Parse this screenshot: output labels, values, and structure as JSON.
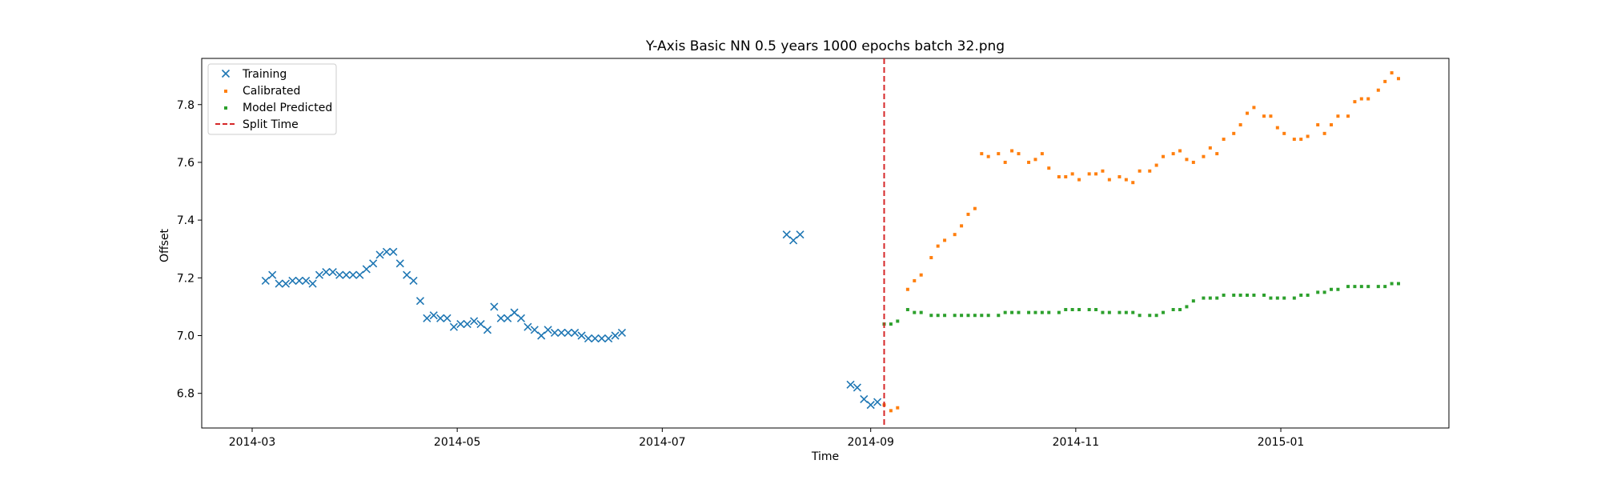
{
  "chart_data": {
    "type": "scatter",
    "title": "Y-Axis Basic NN 0.5 years 1000 epochs batch 32.png",
    "xlabel": "Time",
    "ylabel": "Offset",
    "xlim": [
      "2014-02-14",
      "2015-02-20"
    ],
    "ylim": [
      6.68,
      7.96
    ],
    "x_ticks": [
      "2014-03",
      "2014-05",
      "2014-07",
      "2014-09",
      "2014-11",
      "2015-01"
    ],
    "y_ticks": [
      6.8,
      7.0,
      7.2,
      7.4,
      7.6,
      7.8
    ],
    "y_tick_labels": [
      "6.8",
      "7.0",
      "7.2",
      "7.4",
      "7.6",
      "7.8"
    ],
    "grid": false,
    "legend_position": "top-left",
    "split_time": "2014-09-05",
    "series": [
      {
        "name": "Training",
        "marker": "x",
        "color": "#1f77b4",
        "points": [
          [
            "2014-03-05",
            7.19
          ],
          [
            "2014-03-07",
            7.21
          ],
          [
            "2014-03-09",
            7.18
          ],
          [
            "2014-03-11",
            7.18
          ],
          [
            "2014-03-13",
            7.19
          ],
          [
            "2014-03-15",
            7.19
          ],
          [
            "2014-03-17",
            7.19
          ],
          [
            "2014-03-19",
            7.18
          ],
          [
            "2014-03-21",
            7.21
          ],
          [
            "2014-03-23",
            7.22
          ],
          [
            "2014-03-25",
            7.22
          ],
          [
            "2014-03-27",
            7.21
          ],
          [
            "2014-03-29",
            7.21
          ],
          [
            "2014-03-31",
            7.21
          ],
          [
            "2014-04-02",
            7.21
          ],
          [
            "2014-04-04",
            7.23
          ],
          [
            "2014-04-06",
            7.25
          ],
          [
            "2014-04-08",
            7.28
          ],
          [
            "2014-04-10",
            7.29
          ],
          [
            "2014-04-12",
            7.29
          ],
          [
            "2014-04-14",
            7.25
          ],
          [
            "2014-04-16",
            7.21
          ],
          [
            "2014-04-18",
            7.19
          ],
          [
            "2014-04-20",
            7.12
          ],
          [
            "2014-04-22",
            7.06
          ],
          [
            "2014-04-24",
            7.07
          ],
          [
            "2014-04-26",
            7.06
          ],
          [
            "2014-04-28",
            7.06
          ],
          [
            "2014-04-30",
            7.03
          ],
          [
            "2014-05-02",
            7.04
          ],
          [
            "2014-05-04",
            7.04
          ],
          [
            "2014-05-06",
            7.05
          ],
          [
            "2014-05-08",
            7.04
          ],
          [
            "2014-05-10",
            7.02
          ],
          [
            "2014-05-12",
            7.1
          ],
          [
            "2014-05-14",
            7.06
          ],
          [
            "2014-05-16",
            7.06
          ],
          [
            "2014-05-18",
            7.08
          ],
          [
            "2014-05-20",
            7.06
          ],
          [
            "2014-05-22",
            7.03
          ],
          [
            "2014-05-24",
            7.02
          ],
          [
            "2014-05-26",
            7.0
          ],
          [
            "2014-05-28",
            7.02
          ],
          [
            "2014-05-30",
            7.01
          ],
          [
            "2014-06-01",
            7.01
          ],
          [
            "2014-06-03",
            7.01
          ],
          [
            "2014-06-05",
            7.01
          ],
          [
            "2014-06-07",
            7.0
          ],
          [
            "2014-06-09",
            6.99
          ],
          [
            "2014-06-11",
            6.99
          ],
          [
            "2014-06-13",
            6.99
          ],
          [
            "2014-06-15",
            6.99
          ],
          [
            "2014-06-17",
            7.0
          ],
          [
            "2014-06-19",
            7.01
          ],
          [
            "2014-08-07",
            7.35
          ],
          [
            "2014-08-09",
            7.33
          ],
          [
            "2014-08-11",
            7.35
          ],
          [
            "2014-08-26",
            6.83
          ],
          [
            "2014-08-28",
            6.82
          ],
          [
            "2014-08-30",
            6.78
          ],
          [
            "2014-09-01",
            6.76
          ],
          [
            "2014-09-03",
            6.77
          ]
        ]
      },
      {
        "name": "Calibrated",
        "marker": "square",
        "color": "#ff7f0e",
        "points": [
          [
            "2014-09-05",
            6.76
          ],
          [
            "2014-09-07",
            6.74
          ],
          [
            "2014-09-09",
            6.75
          ],
          [
            "2014-09-12",
            7.16
          ],
          [
            "2014-09-14",
            7.19
          ],
          [
            "2014-09-16",
            7.21
          ],
          [
            "2014-09-19",
            7.27
          ],
          [
            "2014-09-21",
            7.31
          ],
          [
            "2014-09-23",
            7.33
          ],
          [
            "2014-09-26",
            7.35
          ],
          [
            "2014-09-28",
            7.38
          ],
          [
            "2014-09-30",
            7.42
          ],
          [
            "2014-10-02",
            7.44
          ],
          [
            "2014-10-04",
            7.63
          ],
          [
            "2014-10-06",
            7.62
          ],
          [
            "2014-10-09",
            7.63
          ],
          [
            "2014-10-11",
            7.6
          ],
          [
            "2014-10-13",
            7.64
          ],
          [
            "2014-10-15",
            7.63
          ],
          [
            "2014-10-18",
            7.6
          ],
          [
            "2014-10-20",
            7.61
          ],
          [
            "2014-10-22",
            7.63
          ],
          [
            "2014-10-24",
            7.58
          ],
          [
            "2014-10-27",
            7.55
          ],
          [
            "2014-10-29",
            7.55
          ],
          [
            "2014-10-31",
            7.56
          ],
          [
            "2014-11-02",
            7.54
          ],
          [
            "2014-11-05",
            7.56
          ],
          [
            "2014-11-07",
            7.56
          ],
          [
            "2014-11-09",
            7.57
          ],
          [
            "2014-11-11",
            7.54
          ],
          [
            "2014-11-14",
            7.55
          ],
          [
            "2014-11-16",
            7.54
          ],
          [
            "2014-11-18",
            7.53
          ],
          [
            "2014-11-20",
            7.57
          ],
          [
            "2014-11-23",
            7.57
          ],
          [
            "2014-11-25",
            7.59
          ],
          [
            "2014-11-27",
            7.62
          ],
          [
            "2014-11-30",
            7.63
          ],
          [
            "2014-12-02",
            7.64
          ],
          [
            "2014-12-04",
            7.61
          ],
          [
            "2014-12-06",
            7.6
          ],
          [
            "2014-12-09",
            7.62
          ],
          [
            "2014-12-11",
            7.65
          ],
          [
            "2014-12-13",
            7.63
          ],
          [
            "2014-12-15",
            7.68
          ],
          [
            "2014-12-18",
            7.7
          ],
          [
            "2014-12-20",
            7.73
          ],
          [
            "2014-12-22",
            7.77
          ],
          [
            "2014-12-24",
            7.79
          ],
          [
            "2014-12-27",
            7.76
          ],
          [
            "2014-12-29",
            7.76
          ],
          [
            "2014-12-31",
            7.72
          ],
          [
            "2015-01-02",
            7.7
          ],
          [
            "2015-01-05",
            7.68
          ],
          [
            "2015-01-07",
            7.68
          ],
          [
            "2015-01-09",
            7.69
          ],
          [
            "2015-01-12",
            7.73
          ],
          [
            "2015-01-14",
            7.7
          ],
          [
            "2015-01-16",
            7.73
          ],
          [
            "2015-01-18",
            7.76
          ],
          [
            "2015-01-21",
            7.76
          ],
          [
            "2015-01-23",
            7.81
          ],
          [
            "2015-01-25",
            7.82
          ],
          [
            "2015-01-27",
            7.82
          ],
          [
            "2015-01-30",
            7.85
          ],
          [
            "2015-02-01",
            7.88
          ],
          [
            "2015-02-03",
            7.91
          ],
          [
            "2015-02-05",
            7.89
          ]
        ]
      },
      {
        "name": "Model Predicted",
        "marker": "square",
        "color": "#2ca02c",
        "points": [
          [
            "2014-09-05",
            7.04
          ],
          [
            "2014-09-07",
            7.04
          ],
          [
            "2014-09-09",
            7.05
          ],
          [
            "2014-09-12",
            7.09
          ],
          [
            "2014-09-14",
            7.08
          ],
          [
            "2014-09-16",
            7.08
          ],
          [
            "2014-09-19",
            7.07
          ],
          [
            "2014-09-21",
            7.07
          ],
          [
            "2014-09-23",
            7.07
          ],
          [
            "2014-09-26",
            7.07
          ],
          [
            "2014-09-28",
            7.07
          ],
          [
            "2014-09-30",
            7.07
          ],
          [
            "2014-10-02",
            7.07
          ],
          [
            "2014-10-04",
            7.07
          ],
          [
            "2014-10-06",
            7.07
          ],
          [
            "2014-10-09",
            7.07
          ],
          [
            "2014-10-11",
            7.08
          ],
          [
            "2014-10-13",
            7.08
          ],
          [
            "2014-10-15",
            7.08
          ],
          [
            "2014-10-18",
            7.08
          ],
          [
            "2014-10-20",
            7.08
          ],
          [
            "2014-10-22",
            7.08
          ],
          [
            "2014-10-24",
            7.08
          ],
          [
            "2014-10-27",
            7.08
          ],
          [
            "2014-10-29",
            7.09
          ],
          [
            "2014-10-31",
            7.09
          ],
          [
            "2014-11-02",
            7.09
          ],
          [
            "2014-11-05",
            7.09
          ],
          [
            "2014-11-07",
            7.09
          ],
          [
            "2014-11-09",
            7.08
          ],
          [
            "2014-11-11",
            7.08
          ],
          [
            "2014-11-14",
            7.08
          ],
          [
            "2014-11-16",
            7.08
          ],
          [
            "2014-11-18",
            7.08
          ],
          [
            "2014-11-20",
            7.07
          ],
          [
            "2014-11-23",
            7.07
          ],
          [
            "2014-11-25",
            7.07
          ],
          [
            "2014-11-27",
            7.08
          ],
          [
            "2014-11-30",
            7.09
          ],
          [
            "2014-12-02",
            7.09
          ],
          [
            "2014-12-04",
            7.1
          ],
          [
            "2014-12-06",
            7.12
          ],
          [
            "2014-12-09",
            7.13
          ],
          [
            "2014-12-11",
            7.13
          ],
          [
            "2014-12-13",
            7.13
          ],
          [
            "2014-12-15",
            7.14
          ],
          [
            "2014-12-18",
            7.14
          ],
          [
            "2014-12-20",
            7.14
          ],
          [
            "2014-12-22",
            7.14
          ],
          [
            "2014-12-24",
            7.14
          ],
          [
            "2014-12-27",
            7.14
          ],
          [
            "2014-12-29",
            7.13
          ],
          [
            "2014-12-31",
            7.13
          ],
          [
            "2015-01-02",
            7.13
          ],
          [
            "2015-01-05",
            7.13
          ],
          [
            "2015-01-07",
            7.14
          ],
          [
            "2015-01-09",
            7.14
          ],
          [
            "2015-01-12",
            7.15
          ],
          [
            "2015-01-14",
            7.15
          ],
          [
            "2015-01-16",
            7.16
          ],
          [
            "2015-01-18",
            7.16
          ],
          [
            "2015-01-21",
            7.17
          ],
          [
            "2015-01-23",
            7.17
          ],
          [
            "2015-01-25",
            7.17
          ],
          [
            "2015-01-27",
            7.17
          ],
          [
            "2015-01-30",
            7.17
          ],
          [
            "2015-02-01",
            7.17
          ],
          [
            "2015-02-03",
            7.18
          ],
          [
            "2015-02-05",
            7.18
          ]
        ]
      },
      {
        "name": "Split Time",
        "marker": "dashed-line",
        "color": "#d62728"
      }
    ]
  }
}
